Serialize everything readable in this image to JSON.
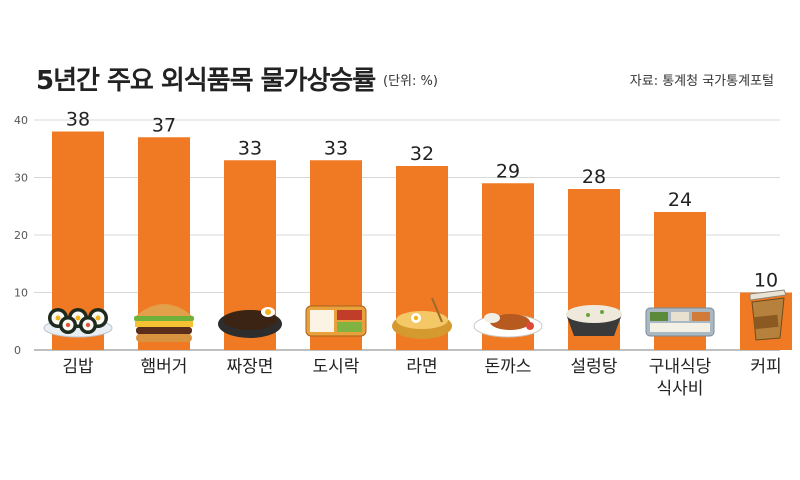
{
  "chart_data": {
    "type": "bar",
    "title": "5년간 주요 외식품목 물가상승률",
    "unit": "(단위: %)",
    "source": "자료: 통계청 국가통계포털",
    "categories": [
      [
        "김밥"
      ],
      [
        "햄버거"
      ],
      [
        "짜장면"
      ],
      [
        "도시락"
      ],
      [
        "라면"
      ],
      [
        "돈까스"
      ],
      [
        "설렁탕"
      ],
      [
        "구내식당",
        "식사비"
      ],
      [
        "커피"
      ]
    ],
    "values": [
      38,
      37,
      33,
      33,
      32,
      29,
      28,
      24,
      10
    ],
    "ylim": [
      0,
      40
    ],
    "yticks": [
      0,
      10,
      20,
      30,
      40
    ],
    "grid": true,
    "bar_color": "#f07a23",
    "food_icons": [
      "gimbap-plate-icon",
      "hamburger-icon",
      "jajangmyeon-bowl-icon",
      "dosirak-lunchbox-icon",
      "ramen-pot-icon",
      "donkatsu-plate-icon",
      "seolleongtang-bowl-icon",
      "cafeteria-tray-icon",
      "coffee-cup-icon"
    ]
  }
}
